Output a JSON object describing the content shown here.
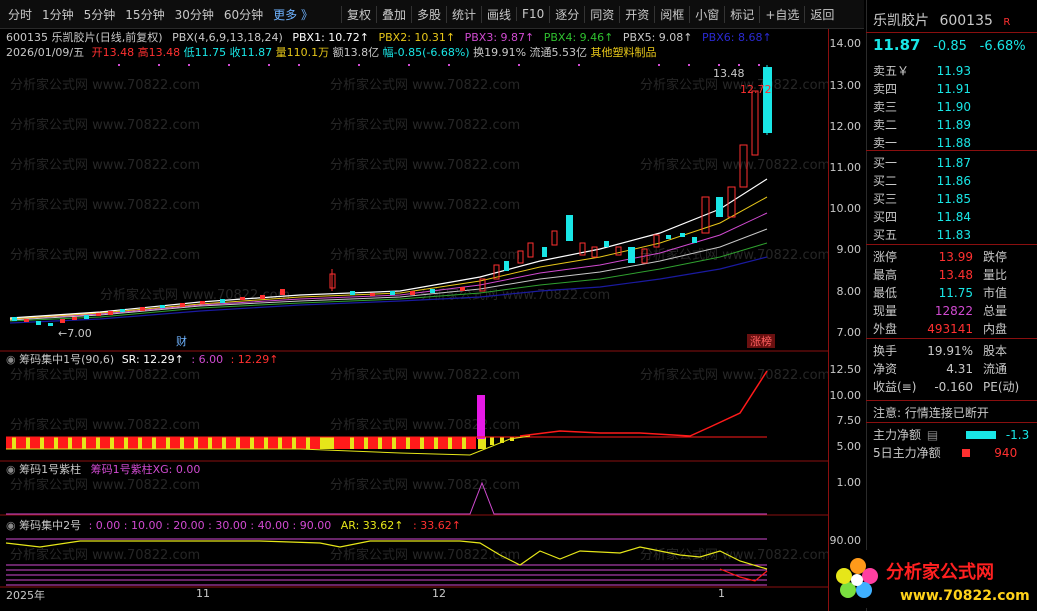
{
  "toolbar": {
    "periods": [
      "分时",
      "1分钟",
      "5分钟",
      "15分钟",
      "30分钟",
      "60分钟",
      "更多 》"
    ],
    "buttons": [
      "复权",
      "叠加",
      "多股",
      "统计",
      "画线",
      "F10",
      "逐分",
      "同资",
      "开资",
      "阅框",
      "小窗",
      "标记",
      "+自选",
      "返回"
    ]
  },
  "chart": {
    "title_line": "600135  乐凯胶片(日线,前复权)",
    "pbx_label": "PBX(4,6,9,13,18,24)",
    "pbx1": "PBX1: 10.72↑",
    "pbx2": "PBX2: 10.31↑",
    "pbx3": "PBX3: 9.87↑",
    "pbx4": "PBX4: 9.46↑",
    "pbx5": "PBX5: 9.08↑",
    "pbx6": "PBX6: 8.68↑",
    "date_line": "2026/01/09/五",
    "open": "开13.48",
    "high": "高13.48",
    "low": "低11.75",
    "close": "收11.87",
    "volume": "量110.1万",
    "amount": "额13.8亿",
    "change": "幅-0.85(-6.68%)",
    "turnover": "换19.91%",
    "float_cap": "流通5.53亿",
    "sector": "其他塑料制品",
    "price_high_mark": "13.48",
    "price_peak_label": "12.72",
    "price_low_mark": "←7.00",
    "finance_mark": "财",
    "limit_mark": "涨榜",
    "axis_main": [
      "14.00",
      "13.00",
      "12.00",
      "11.00",
      "10.00",
      "9.00",
      "8.00",
      "7.00"
    ],
    "sub1_label": "筹码集中1号(90,6)",
    "sub1_sr": "SR: 12.29↑",
    "sub1_a": ": 6.00",
    "sub1_b": ": 12.29↑",
    "axis_sub1": [
      "12.50",
      "10.00",
      "7.50",
      "5.00"
    ],
    "sub2_label": "筹码1号紫柱",
    "sub2_xg": "筹码1号紫柱XG: 0.00",
    "axis_sub2": [
      "1.00",
      "0.00"
    ],
    "sub3_label": "筹码集中2号",
    "sub3_values": ": 0.00 : 10.00 : 20.00 : 30.00 : 40.00 : 90.00",
    "sub3_ar": "AR: 33.62↑",
    "sub3_ar2": ": 33.62↑",
    "axis_sub3": [
      "90.00"
    ],
    "x_labels": [
      "2025年",
      "11",
      "12",
      "1"
    ],
    "watermark": "分析家公式网 www.70822.com"
  },
  "panel": {
    "name": "乐凯胶片",
    "code": "600135",
    "badge": "R",
    "price": "11.87",
    "chg": "-0.85",
    "pct": "-6.68%",
    "asks": [
      {
        "name": "卖五￥",
        "val": "11.93"
      },
      {
        "name": "卖四",
        "val": "11.91"
      },
      {
        "name": "卖三",
        "val": "11.90"
      },
      {
        "name": "卖二",
        "val": "11.89"
      },
      {
        "name": "卖一",
        "val": "11.88"
      }
    ],
    "bids": [
      {
        "name": "买一",
        "val": "11.87"
      },
      {
        "name": "买二",
        "val": "11.86"
      },
      {
        "name": "买三",
        "val": "11.85"
      },
      {
        "name": "买四",
        "val": "11.84"
      },
      {
        "name": "买五",
        "val": "11.83"
      }
    ],
    "stats1": [
      {
        "k": "涨停",
        "v": "13.99",
        "color": "#ff3030",
        "k2": "跌停"
      },
      {
        "k": "最高",
        "v": "13.48",
        "color": "#ff3030",
        "k2": "量比"
      },
      {
        "k": "最低",
        "v": "11.75",
        "color": "#19e6e6",
        "k2": "市值"
      },
      {
        "k": "现量",
        "v": "12822",
        "color": "#d04ad0",
        "k2": "总量"
      },
      {
        "k": "外盘",
        "v": "493141",
        "color": "#ff3030",
        "k2": "内盘"
      }
    ],
    "stats2": [
      {
        "k": "换手",
        "v": "19.91%",
        "color": "#c8c8c8",
        "k2": "股本"
      },
      {
        "k": "净资",
        "v": "4.31",
        "color": "#c8c8c8",
        "k2": "流通"
      },
      {
        "k": "收益(≡)",
        "v": "-0.160",
        "color": "#c8c8c8",
        "k2": "PE(动)"
      }
    ],
    "notice": "注意: 行情连接已断开",
    "main_net": "主力净额",
    "main_net_val": "-1.3",
    "net5": "5日主力净额",
    "net5_val": "940"
  },
  "logo": {
    "text": "分析家公式网",
    "url": "www.70822.com"
  },
  "colors": {
    "up": "#ff3030",
    "down": "#19e6e6",
    "grid": "#8a0f0f"
  }
}
